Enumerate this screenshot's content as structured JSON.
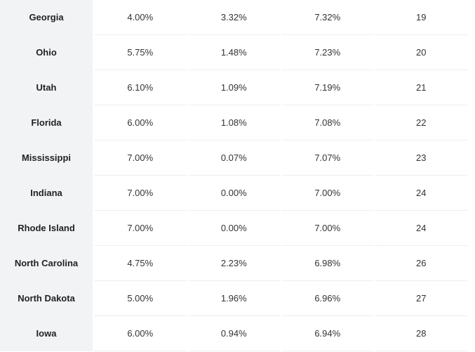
{
  "table": {
    "rows": [
      {
        "state": "Georgia",
        "c1": "4.00%",
        "c2": "3.32%",
        "c3": "7.32%",
        "rank": "19"
      },
      {
        "state": "Ohio",
        "c1": "5.75%",
        "c2": "1.48%",
        "c3": "7.23%",
        "rank": "20"
      },
      {
        "state": "Utah",
        "c1": "6.10%",
        "c2": "1.09%",
        "c3": "7.19%",
        "rank": "21"
      },
      {
        "state": "Florida",
        "c1": "6.00%",
        "c2": "1.08%",
        "c3": "7.08%",
        "rank": "22"
      },
      {
        "state": "Mississippi",
        "c1": "7.00%",
        "c2": "0.07%",
        "c3": "7.07%",
        "rank": "23"
      },
      {
        "state": "Indiana",
        "c1": "7.00%",
        "c2": "0.00%",
        "c3": "7.00%",
        "rank": "24"
      },
      {
        "state": "Rhode Island",
        "c1": "7.00%",
        "c2": "0.00%",
        "c3": "7.00%",
        "rank": "24"
      },
      {
        "state": "North Carolina",
        "c1": "4.75%",
        "c2": "2.23%",
        "c3": "6.98%",
        "rank": "26"
      },
      {
        "state": "North Dakota",
        "c1": "5.00%",
        "c2": "1.96%",
        "c3": "6.96%",
        "rank": "27"
      },
      {
        "state": "Iowa",
        "c1": "6.00%",
        "c2": "0.94%",
        "c3": "6.94%",
        "rank": "28"
      }
    ]
  }
}
